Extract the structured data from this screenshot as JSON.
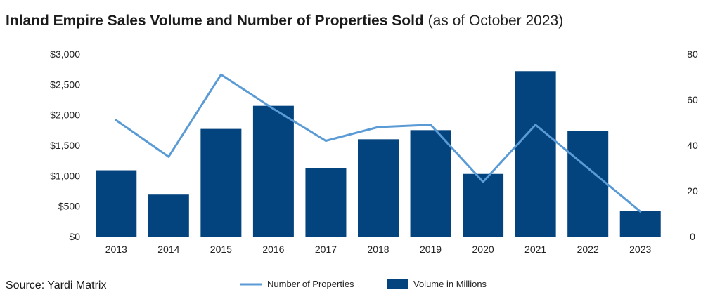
{
  "title": {
    "main": "Inland Empire Sales Volume and Number of Properties Sold",
    "sub": "(as of October 2023)"
  },
  "source": "Source: Yardi Matrix",
  "colors": {
    "bar": "#03437e",
    "line": "#5b9bd5",
    "axis": "#bfbfbf"
  },
  "chart_data": {
    "type": "bar",
    "categories": [
      "2013",
      "2014",
      "2015",
      "2016",
      "2017",
      "2018",
      "2019",
      "2020",
      "2021",
      "2022",
      "2023"
    ],
    "series": [
      {
        "name": "Volume in Millions",
        "type": "bar",
        "axis": "left",
        "values": [
          1090,
          690,
          1770,
          2150,
          1130,
          1600,
          1750,
          1030,
          2720,
          1740,
          420
        ]
      },
      {
        "name": "Number of Properties",
        "type": "line",
        "axis": "right",
        "values": [
          51,
          35,
          71,
          56,
          42,
          48,
          49,
          24,
          49,
          30,
          11
        ]
      }
    ],
    "y_left": {
      "ylim": [
        0,
        3000
      ],
      "ticks": [
        0,
        500,
        1000,
        1500,
        2000,
        2500,
        3000
      ],
      "tick_labels": [
        "$0",
        "$500",
        "$1,000",
        "$1,500",
        "$2,000",
        "$2,500",
        "$3,000"
      ]
    },
    "y_right": {
      "ylim": [
        0,
        80
      ],
      "ticks": [
        0,
        20,
        40,
        60,
        80
      ],
      "tick_labels": [
        "0",
        "20",
        "40",
        "60",
        "80"
      ]
    },
    "grid": false,
    "legend_position": "bottom-center"
  }
}
